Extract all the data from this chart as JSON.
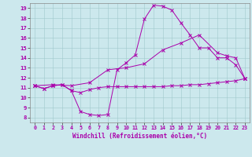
{
  "xlabel": "Windchill (Refroidissement éolien,°C)",
  "background_color": "#cce8ed",
  "line_color": "#aa00aa",
  "xlim": [
    -0.5,
    23.5
  ],
  "ylim": [
    7.5,
    19.5
  ],
  "yticks": [
    8,
    9,
    10,
    11,
    12,
    13,
    14,
    15,
    16,
    17,
    18,
    19
  ],
  "xticks": [
    0,
    1,
    2,
    3,
    4,
    5,
    6,
    7,
    8,
    9,
    10,
    11,
    12,
    13,
    14,
    15,
    16,
    17,
    18,
    19,
    20,
    21,
    22,
    23
  ],
  "series": [
    {
      "x": [
        0,
        1,
        2,
        3,
        4,
        5,
        6,
        7,
        8,
        9,
        10,
        11,
        12,
        13,
        14,
        15,
        16,
        17,
        18,
        19,
        20,
        21,
        22,
        23
      ],
      "y": [
        11.2,
        10.9,
        11.2,
        11.3,
        10.7,
        10.5,
        10.8,
        11.0,
        11.1,
        11.1,
        11.1,
        11.1,
        11.1,
        11.1,
        11.1,
        11.2,
        11.2,
        11.3,
        11.3,
        11.4,
        11.5,
        11.6,
        11.7,
        11.9
      ]
    },
    {
      "x": [
        0,
        1,
        2,
        3,
        4,
        5,
        6,
        7,
        8,
        9,
        10,
        11,
        12,
        13,
        14,
        15,
        16,
        17,
        18,
        19,
        20,
        21,
        22,
        23
      ],
      "y": [
        11.2,
        10.9,
        11.2,
        11.3,
        10.7,
        8.6,
        8.3,
        8.2,
        8.3,
        12.8,
        13.5,
        14.3,
        17.9,
        19.3,
        19.2,
        18.8,
        17.5,
        16.3,
        15.0,
        15.0,
        14.0,
        14.0,
        13.3,
        11.9
      ]
    },
    {
      "x": [
        0,
        2,
        4,
        6,
        8,
        10,
        12,
        14,
        16,
        18,
        20,
        21,
        22,
        23
      ],
      "y": [
        11.2,
        11.3,
        11.2,
        11.5,
        12.8,
        13.0,
        13.4,
        14.8,
        15.5,
        16.3,
        14.5,
        14.2,
        14.0,
        11.9
      ]
    }
  ]
}
